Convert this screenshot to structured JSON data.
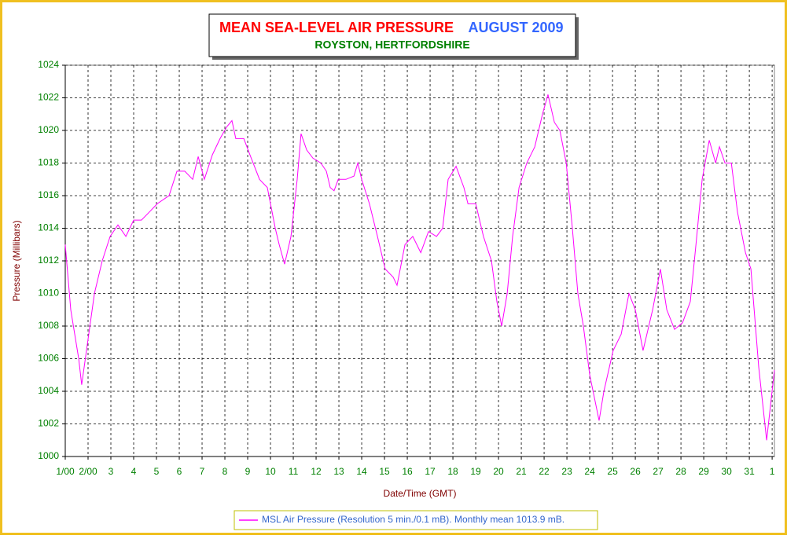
{
  "chart_data": {
    "type": "line",
    "title": "MEAN SEA-LEVEL AIR PRESSURE",
    "title_period": "AUGUST 2009",
    "subtitle": "ROYSTON, HERTFORDSHIRE",
    "xlabel": "Date/Time (GMT)",
    "ylabel": "Pressure (Millibars)",
    "grid": true,
    "legend": "bottom",
    "xlim": [
      0,
      31.1
    ],
    "ylim": [
      1000,
      1024
    ],
    "yticks": [
      1000,
      1002,
      1004,
      1006,
      1008,
      1010,
      1012,
      1014,
      1016,
      1018,
      1020,
      1022,
      1024
    ],
    "xticks": [
      {
        "value": 0,
        "label": "1/00"
      },
      {
        "value": 1,
        "label": "2/00"
      },
      {
        "value": 2,
        "label": "3"
      },
      {
        "value": 3,
        "label": "4"
      },
      {
        "value": 4,
        "label": "5"
      },
      {
        "value": 5,
        "label": "6"
      },
      {
        "value": 6,
        "label": "7"
      },
      {
        "value": 7,
        "label": "8"
      },
      {
        "value": 8,
        "label": "9"
      },
      {
        "value": 9,
        "label": "10"
      },
      {
        "value": 10,
        "label": "11"
      },
      {
        "value": 11,
        "label": "12"
      },
      {
        "value": 12,
        "label": "13"
      },
      {
        "value": 13,
        "label": "14"
      },
      {
        "value": 14,
        "label": "15"
      },
      {
        "value": 15,
        "label": "16"
      },
      {
        "value": 16,
        "label": "17"
      },
      {
        "value": 17,
        "label": "18"
      },
      {
        "value": 18,
        "label": "19"
      },
      {
        "value": 19,
        "label": "20"
      },
      {
        "value": 20,
        "label": "21"
      },
      {
        "value": 21,
        "label": "22"
      },
      {
        "value": 22,
        "label": "23"
      },
      {
        "value": 23,
        "label": "24"
      },
      {
        "value": 24,
        "label": "25"
      },
      {
        "value": 25,
        "label": "26"
      },
      {
        "value": 26,
        "label": "27"
      },
      {
        "value": 27,
        "label": "28"
      },
      {
        "value": 28,
        "label": "29"
      },
      {
        "value": 29,
        "label": "30"
      },
      {
        "value": 30,
        "label": "31"
      },
      {
        "value": 31,
        "label": "1"
      }
    ],
    "x": [
      0,
      0.24,
      0.59,
      0.72,
      0.93,
      1.28,
      1.62,
      1.97,
      2.31,
      2.66,
      3.0,
      3.34,
      3.69,
      4.03,
      4.55,
      4.9,
      5.24,
      5.59,
      5.83,
      6.1,
      6.45,
      6.79,
      7.07,
      7.31,
      7.48,
      7.83,
      8.1,
      8.52,
      8.86,
      9.21,
      9.38,
      9.62,
      9.9,
      10.17,
      10.34,
      10.59,
      10.86,
      11.21,
      11.45,
      11.62,
      11.79,
      11.97,
      12.31,
      12.66,
      12.83,
      13.0,
      13.34,
      13.69,
      14.03,
      14.38,
      14.55,
      14.9,
      15.24,
      15.59,
      15.93,
      16.28,
      16.55,
      16.79,
      17.14,
      17.48,
      17.66,
      18.0,
      18.34,
      18.69,
      18.93,
      19.14,
      19.38,
      19.62,
      19.9,
      20.24,
      20.59,
      20.93,
      21.17,
      21.45,
      21.69,
      21.97,
      22.24,
      22.48,
      22.72,
      23.0,
      23.41,
      23.62,
      24.03,
      24.38,
      24.72,
      25.0,
      25.34,
      25.76,
      26.1,
      26.38,
      26.72,
      27.07,
      27.41,
      27.66,
      27.93,
      28.24,
      28.52,
      28.69,
      28.93,
      29.21,
      29.48,
      29.83,
      30.07,
      30.41,
      30.76,
      31.1
    ],
    "series": [
      {
        "name": "MSL Air Pressure (Resolution 5 min./0.1 mB). Monthly mean 1013.9 mB.",
        "color": "#ff00ff",
        "values": [
          1013,
          1009,
          1006,
          1004.4,
          1006.5,
          1010,
          1012,
          1013.5,
          1014.2,
          1013.5,
          1014.5,
          1014.5,
          1015,
          1015.5,
          1016,
          1017.5,
          1017.5,
          1017,
          1018.4,
          1017,
          1018.5,
          1019.5,
          1020.2,
          1020.6,
          1019.5,
          1019.5,
          1018.5,
          1017,
          1016.5,
          1014,
          1013,
          1011.8,
          1013.5,
          1017,
          1019.8,
          1018.8,
          1018.3,
          1018,
          1017.5,
          1016.5,
          1016.3,
          1017,
          1017,
          1017.2,
          1018,
          1017,
          1015.5,
          1013.5,
          1011.5,
          1011,
          1010.5,
          1013,
          1013.5,
          1012.5,
          1013.8,
          1013.5,
          1014,
          1017,
          1017.8,
          1016.5,
          1015.5,
          1015.5,
          1013.5,
          1012,
          1009.5,
          1008,
          1010,
          1013.5,
          1016.5,
          1018,
          1019,
          1021,
          1022.2,
          1020.5,
          1020,
          1018,
          1014,
          1010,
          1008,
          1005,
          1002.2,
          1004,
          1006.5,
          1007.5,
          1010,
          1009,
          1006.5,
          1009,
          1011.5,
          1009,
          1007.8,
          1008.2,
          1009.5,
          1013,
          1017,
          1019.4,
          1018,
          1019,
          1018,
          1018,
          1015,
          1012.5,
          1011.5,
          1005.5,
          1001,
          1005.3
        ]
      }
    ]
  }
}
